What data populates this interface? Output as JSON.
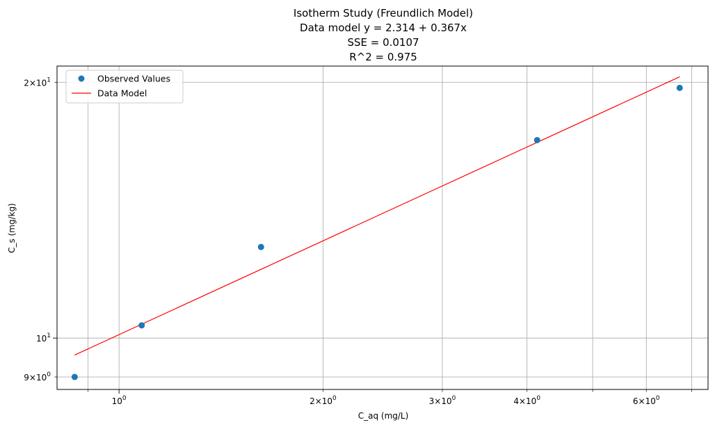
{
  "chart_data": {
    "type": "scatter",
    "title_lines": [
      "Isotherm Study (Freundlich Model)",
      "Data model y = 2.314 + 0.367x",
      "SSE = 0.0107",
      "R^2 = 0.975"
    ],
    "xlabel": "C_aq (mg/L)",
    "ylabel": "C_s  (mg/kg)",
    "xscale": "log",
    "yscale": "log",
    "xlim": [
      0.81,
      7.4
    ],
    "ylim": [
      8.7,
      20.9
    ],
    "grid": true,
    "legend_position": "upper-left",
    "x_major_ticks": [
      {
        "value": 1,
        "base": "10",
        "exp": "0"
      }
    ],
    "x_minor_ticks": [
      {
        "value": 0.9,
        "label": null
      },
      {
        "value": 2,
        "label": "2",
        "base": "10",
        "exp": "0"
      },
      {
        "value": 3,
        "label": "3",
        "base": "10",
        "exp": "0"
      },
      {
        "value": 4,
        "label": "4",
        "base": "10",
        "exp": "0"
      },
      {
        "value": 5,
        "label": null
      },
      {
        "value": 6,
        "label": "6",
        "base": "10",
        "exp": "0"
      },
      {
        "value": 7,
        "label": null
      }
    ],
    "y_major_ticks": [
      {
        "value": 10,
        "base": "10",
        "exp": "1"
      }
    ],
    "y_minor_ticks": [
      {
        "value": 9,
        "label": "9",
        "base": "10",
        "exp": "0"
      },
      {
        "value": 20,
        "label": "2",
        "base": "10",
        "exp": "1"
      }
    ],
    "series": [
      {
        "name": "Observed Values",
        "kind": "scatter",
        "color": "#1f77b4",
        "x": [
          0.86,
          1.08,
          1.62,
          4.14,
          6.72
        ],
        "y": [
          9.0,
          10.35,
          12.8,
          17.1,
          19.7
        ]
      },
      {
        "name": "Data Model",
        "kind": "line",
        "color": "#ff0000",
        "x": [
          0.86,
          6.72
        ],
        "y": [
          9.55,
          20.3
        ]
      }
    ]
  }
}
